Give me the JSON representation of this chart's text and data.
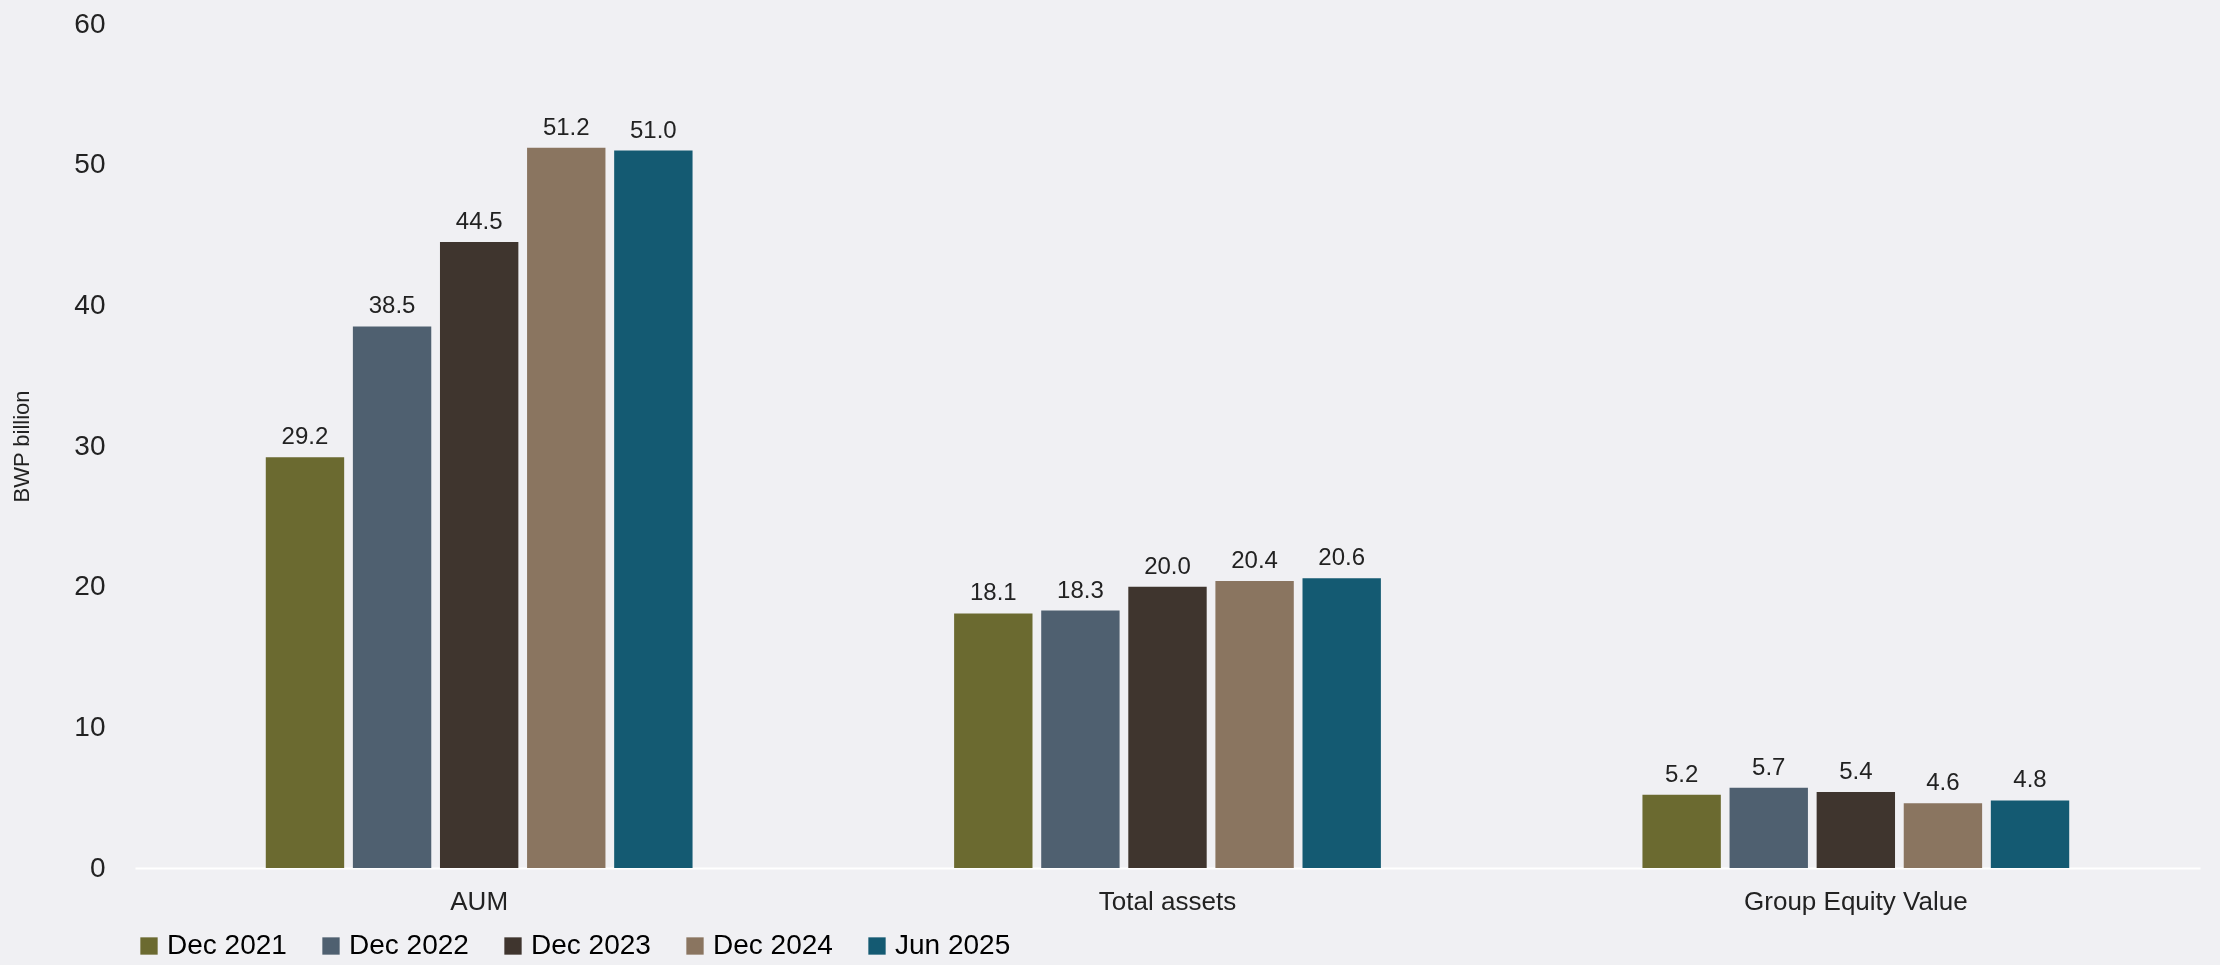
{
  "chart_data": {
    "type": "bar",
    "ylabel": "BWP billion",
    "categories": [
      "AUM",
      "Total assets",
      "Group Equity Value"
    ],
    "series": [
      {
        "name": "Dec 2021",
        "color": "#6b6a30",
        "values": [
          29.2,
          18.1,
          5.2
        ],
        "value_labels": [
          "29.2",
          "18.1",
          "5.2"
        ]
      },
      {
        "name": "Dec 2022",
        "color": "#4f6070",
        "values": [
          38.5,
          18.3,
          5.7
        ],
        "value_labels": [
          "38.5",
          "18.3",
          "5.7"
        ]
      },
      {
        "name": "Dec 2023",
        "color": "#3f352e",
        "values": [
          44.5,
          20,
          5.4
        ],
        "value_labels": [
          "44.5",
          "20.0",
          "5.4"
        ]
      },
      {
        "name": "Dec 2024",
        "color": "#8a7560",
        "values": [
          51.2,
          20.4,
          4.6
        ],
        "value_labels": [
          "51.2",
          "20.4",
          "4.6"
        ]
      },
      {
        "name": "Jun 2025",
        "color": "#145a72",
        "values": [
          51,
          20.6,
          4.8
        ],
        "value_labels": [
          "51.0",
          "20.6",
          "4.8"
        ]
      }
    ],
    "ylim": [
      0,
      60
    ],
    "yticks": [
      0,
      10,
      20,
      30,
      40,
      50,
      60
    ],
    "grid": false,
    "legend": "bottom"
  }
}
